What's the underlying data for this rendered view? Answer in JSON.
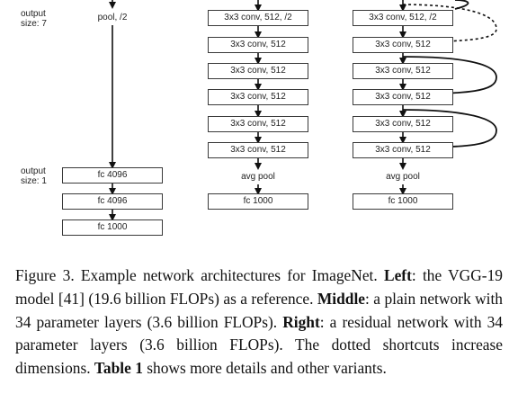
{
  "left_column": {
    "output_size_7": [
      "output",
      "size: 7"
    ],
    "output_size_1": [
      "output",
      "size: 1"
    ],
    "pool_label": "pool, /2",
    "fc_boxes": [
      "fc 4096",
      "fc 4096",
      "fc 1000"
    ]
  },
  "middle_column": {
    "conv_boxes": [
      "3x3 conv, 512, /2",
      "3x3 conv, 512",
      "3x3 conv, 512",
      "3x3 conv, 512",
      "3x3 conv, 512",
      "3x3 conv, 512"
    ],
    "avg_pool": "avg pool",
    "fc_box": "fc 1000"
  },
  "right_column": {
    "conv_boxes": [
      "3x3 conv, 512, /2",
      "3x3 conv, 512",
      "3x3 conv, 512",
      "3x3 conv, 512",
      "3x3 conv, 512",
      "3x3 conv, 512"
    ],
    "avg_pool": "avg pool",
    "fc_box": "fc 1000"
  },
  "caption": {
    "prefix": "Figure 3. Example network architectures for ImageNet. ",
    "left_bold": "Left",
    "left_text": ": the VGG-19 model [41] (19.6 billion FLOPs) as a reference. ",
    "middle_bold": "Middle",
    "middle_text": ": a plain network with 34 parameter layers (3.6 billion FLOPs). ",
    "right_bold": "Right",
    "right_text": ": a residual network with 34 parameter layers (3.6 billion FLOPs). The dotted shortcuts increase dimensions. ",
    "table_bold": "Table 1",
    "table_text": " shows more details and other variants."
  }
}
